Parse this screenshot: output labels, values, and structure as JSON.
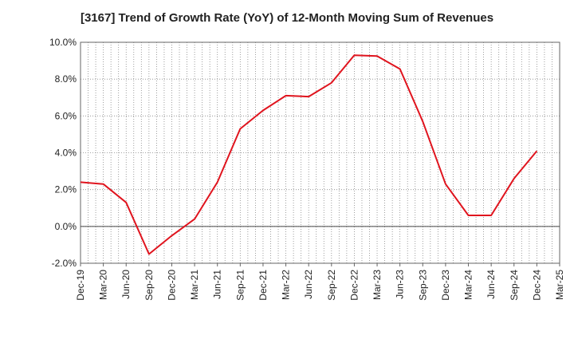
{
  "chart_data": {
    "type": "line",
    "title": "[3167]  Trend of Growth Rate (YoY) of 12-Month Moving Sum of Revenues",
    "xlabel": "",
    "ylabel": "",
    "ylim": [
      -2.0,
      10.0
    ],
    "y_ticks": [
      "10.0%",
      "8.0%",
      "6.0%",
      "4.0%",
      "2.0%",
      "0.0%",
      "-2.0%"
    ],
    "y_tick_values": [
      10,
      8,
      6,
      4,
      2,
      0,
      -2
    ],
    "x_tick_labels": [
      "Dec-19",
      "Mar-20",
      "Jun-20",
      "Sep-20",
      "Dec-20",
      "Mar-21",
      "Jun-21",
      "Sep-21",
      "Dec-21",
      "Mar-22",
      "Jun-22",
      "Sep-22",
      "Dec-22",
      "Mar-23",
      "Jun-23",
      "Sep-23",
      "Dec-23",
      "Mar-24",
      "Jun-24",
      "Sep-24",
      "Dec-24",
      "Mar-25"
    ],
    "grid": true,
    "series": [
      {
        "color": "#e0141e",
        "x": [
          "Dec-19",
          "Mar-20",
          "Jun-20",
          "Sep-20",
          "Dec-20",
          "Mar-21",
          "Jun-21",
          "Sep-21",
          "Dec-21",
          "Mar-22",
          "Jun-22",
          "Sep-22",
          "Dec-22",
          "Mar-23",
          "Jun-23",
          "Sep-23",
          "Dec-23",
          "Mar-24",
          "Jun-24",
          "Sep-24",
          "Dec-24"
        ],
        "values": [
          2.4,
          2.3,
          1.3,
          -1.5,
          -0.5,
          0.4,
          2.4,
          5.3,
          6.3,
          7.1,
          7.05,
          7.8,
          9.3,
          9.25,
          8.55,
          5.7,
          2.3,
          0.6,
          0.6,
          2.6,
          4.1
        ]
      }
    ]
  }
}
